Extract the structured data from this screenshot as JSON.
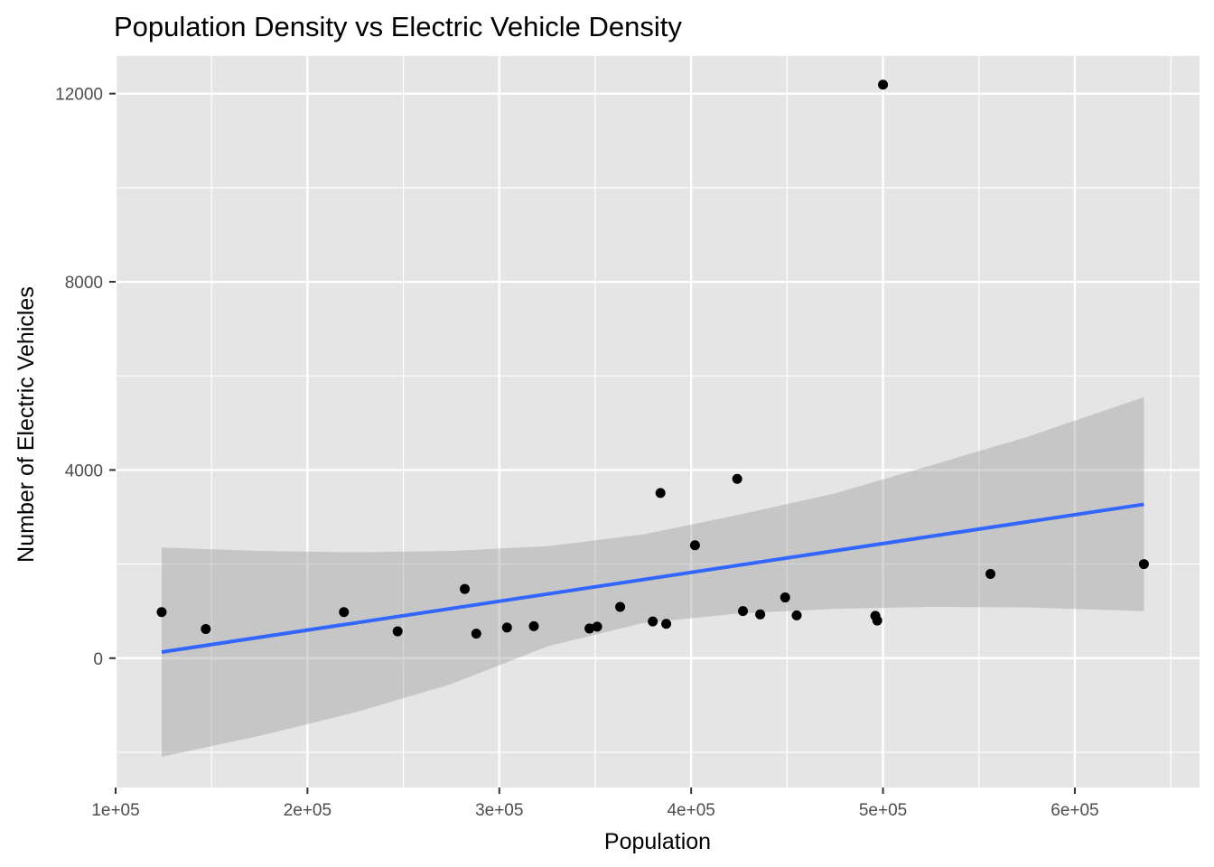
{
  "chart_data": {
    "type": "scatter",
    "title": "Population Density vs Electric Vehicle Density",
    "xlabel": "Population",
    "ylabel": "Number of Electric Vehicles",
    "xlim": [
      100000,
      665000
    ],
    "ylim": [
      -2750,
      12800
    ],
    "x_ticks": [
      100000,
      200000,
      300000,
      400000,
      500000,
      600000
    ],
    "x_tick_labels": [
      "1e+05",
      "2e+05",
      "3e+05",
      "4e+05",
      "5e+05",
      "6e+05"
    ],
    "y_ticks": [
      0,
      4000,
      8000,
      12000
    ],
    "y_tick_labels": [
      "0",
      "4000",
      "8000",
      "12000"
    ],
    "grid": true,
    "colors": {
      "panel": "#e5e5e5",
      "grid": "#ffffff",
      "point": "#000000",
      "fit_line": "#3366ff",
      "confidence_band": "#999999"
    },
    "points": [
      {
        "x": 124000,
        "y": 980
      },
      {
        "x": 147000,
        "y": 620
      },
      {
        "x": 219000,
        "y": 980
      },
      {
        "x": 247000,
        "y": 570
      },
      {
        "x": 282000,
        "y": 1470
      },
      {
        "x": 288000,
        "y": 520
      },
      {
        "x": 304000,
        "y": 650
      },
      {
        "x": 318000,
        "y": 680
      },
      {
        "x": 347000,
        "y": 630
      },
      {
        "x": 351000,
        "y": 670
      },
      {
        "x": 363000,
        "y": 1090
      },
      {
        "x": 380000,
        "y": 780
      },
      {
        "x": 384000,
        "y": 3510
      },
      {
        "x": 387000,
        "y": 730
      },
      {
        "x": 402000,
        "y": 2400
      },
      {
        "x": 424000,
        "y": 3810
      },
      {
        "x": 427000,
        "y": 1000
      },
      {
        "x": 436000,
        "y": 930
      },
      {
        "x": 449000,
        "y": 1290
      },
      {
        "x": 455000,
        "y": 910
      },
      {
        "x": 496000,
        "y": 900
      },
      {
        "x": 497000,
        "y": 800
      },
      {
        "x": 500000,
        "y": 12190
      },
      {
        "x": 556000,
        "y": 1790
      },
      {
        "x": 636000,
        "y": 2000
      }
    ],
    "fit_line": {
      "x": [
        124000,
        636000
      ],
      "y": [
        130,
        3270
      ]
    },
    "confidence_band": {
      "x": [
        124000,
        175000,
        225000,
        275000,
        325000,
        375000,
        425000,
        475000,
        525000,
        575000,
        636000
      ],
      "upper": [
        2350,
        2280,
        2250,
        2280,
        2380,
        2630,
        3050,
        3500,
        4100,
        4700,
        5550
      ],
      "lower": [
        -2100,
        -1650,
        -1150,
        -550,
        250,
        750,
        950,
        1050,
        1090,
        1080,
        1000
      ]
    }
  }
}
